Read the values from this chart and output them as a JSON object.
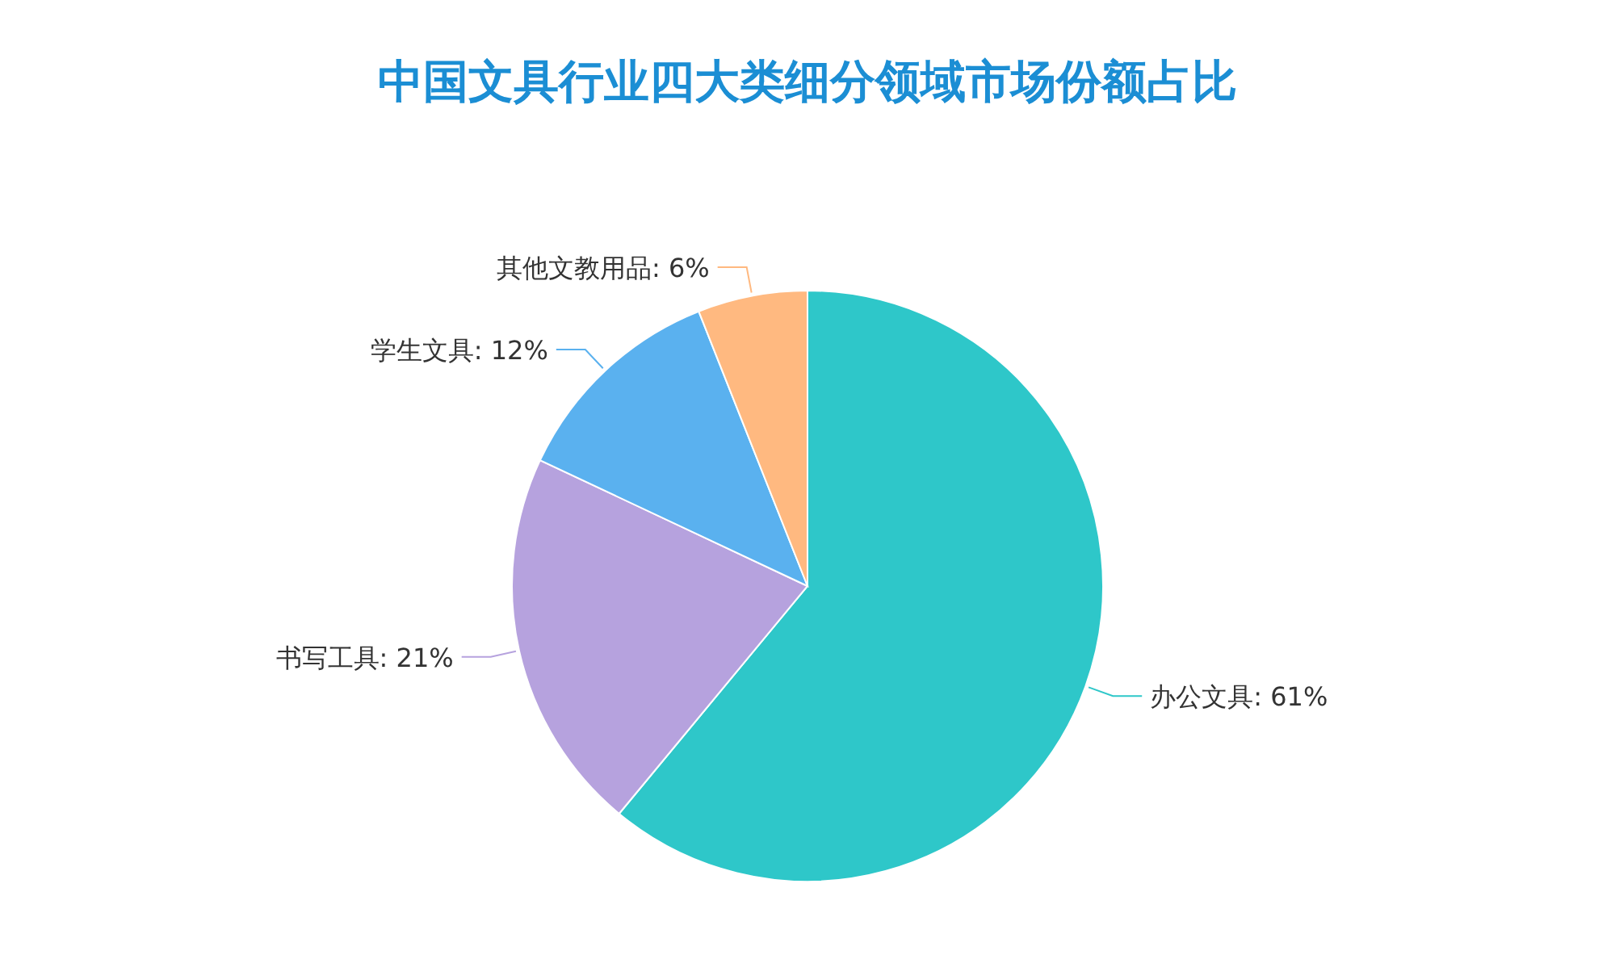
{
  "chart_data": {
    "type": "pie",
    "title": "中国文具行业四大类细分领域市场份额占比",
    "categories": [
      "办公文具",
      "书写工具",
      "学生文具",
      "其他文教用品"
    ],
    "values": [
      61,
      21,
      12,
      6
    ],
    "colors": [
      "#2ec7c9",
      "#b6a2de",
      "#5ab1ef",
      "#ffb980"
    ],
    "value_labels": [
      ": 61%",
      ": 21%",
      ": 12%",
      ": 6%"
    ]
  }
}
